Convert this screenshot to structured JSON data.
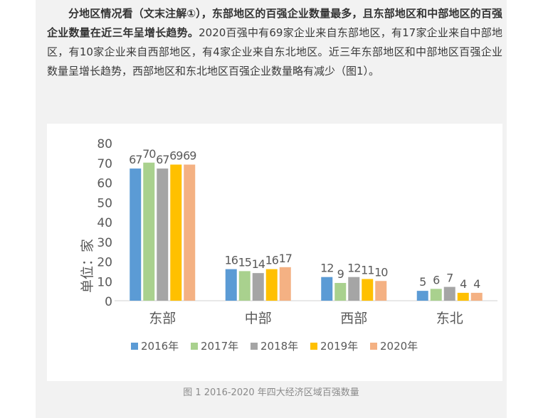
{
  "paragraph": {
    "bold": "分地区情况看（文末注解①），东部地区的百强企业数量最多，且东部地区和中部地区的百强企业数量在近三年呈增长趋势。",
    "text": "2020百强中有69家企业来自东部地区，有17家企业来自中部地区，有10家企业来自西部地区，有4家企业来自东北地区。近三年东部地区和中部地区百强企业数量呈增长趋势，西部地区和东北地区百强企业数量略有减少（图1）。"
  },
  "caption": "图 1 2016-2020 年四大经济区域百强数量",
  "chart_data": {
    "type": "bar",
    "ylabel": "单位：家",
    "ylim": [
      0,
      80
    ],
    "yticks": [
      0,
      10,
      20,
      30,
      40,
      50,
      60,
      70,
      80
    ],
    "categories": [
      "东部",
      "中部",
      "西部",
      "东北"
    ],
    "series": [
      {
        "name": "2016年",
        "color": "#5b9bd5",
        "values": [
          67,
          16,
          12,
          5
        ]
      },
      {
        "name": "2017年",
        "color": "#a9d18e",
        "values": [
          70,
          15,
          9,
          6
        ]
      },
      {
        "name": "2018年",
        "color": "#a5a5a5",
        "values": [
          67,
          14,
          12,
          7
        ]
      },
      {
        "name": "2019年",
        "color": "#ffc000",
        "values": [
          69,
          16,
          11,
          4
        ]
      },
      {
        "name": "2020年",
        "color": "#f4b183",
        "values": [
          69,
          17,
          10,
          4
        ]
      }
    ],
    "legend_position": "bottom",
    "grid": false
  }
}
